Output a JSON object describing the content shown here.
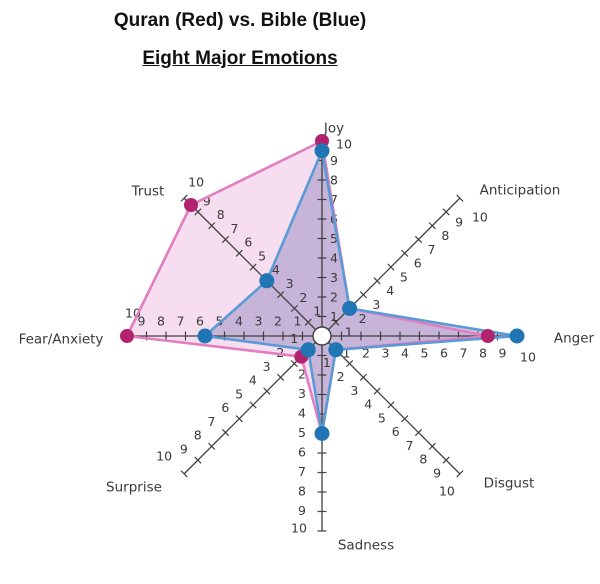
{
  "title": "Quran (Red) vs. Bible (Blue)",
  "subtitle": "Eight Major Emotions",
  "chart_data": {
    "type": "radar",
    "title": "Quran (Red) vs. Bible (Blue)",
    "subtitle": "Eight Major Emotions",
    "categories": [
      "Joy",
      "Anticipation",
      "Anger",
      "Disgust",
      "Sadness",
      "Surprise",
      "Fear/Anxiety",
      "Trust"
    ],
    "axis_min": 0,
    "axis_max": 10,
    "tick_labels": [
      "1",
      "2",
      "3",
      "4",
      "5",
      "6",
      "7",
      "8",
      "9",
      "10"
    ],
    "series": [
      {
        "name": "Quran",
        "color_label": "Red",
        "dot_color": "#b2236e",
        "line_color": "#e27ec0",
        "fill_color": "rgba(228,160,212,0.35)",
        "values": [
          10,
          2,
          8.5,
          1,
          5,
          1.5,
          10,
          9.5
        ]
      },
      {
        "name": "Bible",
        "color_label": "Blue",
        "dot_color": "#2076b4",
        "line_color": "#5b9bd5",
        "fill_color": "rgba(122,112,178,0.38)",
        "values": [
          9.5,
          2,
          10,
          1,
          5,
          1,
          6,
          4
        ]
      }
    ],
    "axis_color": "#404040",
    "label_color": "#3a3a3a",
    "background": "#ffffff"
  }
}
